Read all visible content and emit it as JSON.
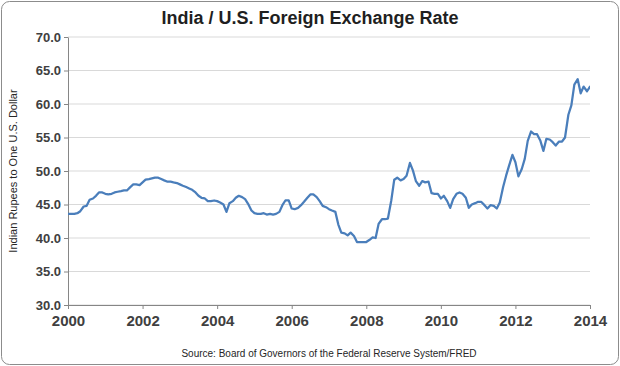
{
  "chart_data": {
    "type": "line",
    "title": "India / U.S. Foreign Exchange Rate",
    "y_label": "Indian Rupees to One U.S. Dollar",
    "annotation": "Source: Board of Governors of the Federal Reserve System/FRED",
    "color": "#4a7ebb",
    "grid": true,
    "xlim": [
      2000,
      2014
    ],
    "xticks": [
      2000,
      2002,
      2004,
      2006,
      2008,
      2010,
      2012,
      2014
    ],
    "ylim": [
      30,
      70
    ],
    "yticks": [
      {
        "value": 30,
        "label": "30.0"
      },
      {
        "value": 35,
        "label": "35.0"
      },
      {
        "value": 40,
        "label": "40.0"
      },
      {
        "value": 45,
        "label": "45.0"
      },
      {
        "value": 50,
        "label": "50.0"
      },
      {
        "value": 55,
        "label": "55.0"
      },
      {
        "value": 60,
        "label": "60.0"
      },
      {
        "value": 65,
        "label": "65.0"
      },
      {
        "value": 70,
        "label": "70.0"
      }
    ],
    "x": [
      2000.0,
      2000.08,
      2000.17,
      2000.25,
      2000.33,
      2000.42,
      2000.5,
      2000.58,
      2000.67,
      2000.75,
      2000.83,
      2000.92,
      2001.0,
      2001.08,
      2001.17,
      2001.25,
      2001.33,
      2001.42,
      2001.5,
      2001.58,
      2001.67,
      2001.75,
      2001.83,
      2001.92,
      2002.0,
      2002.08,
      2002.17,
      2002.25,
      2002.33,
      2002.42,
      2002.5,
      2002.58,
      2002.67,
      2002.75,
      2002.83,
      2002.92,
      2003.0,
      2003.08,
      2003.17,
      2003.25,
      2003.33,
      2003.42,
      2003.5,
      2003.58,
      2003.67,
      2003.75,
      2003.83,
      2003.92,
      2004.0,
      2004.08,
      2004.17,
      2004.25,
      2004.33,
      2004.42,
      2004.5,
      2004.58,
      2004.67,
      2004.75,
      2004.83,
      2004.92,
      2005.0,
      2005.08,
      2005.17,
      2005.25,
      2005.33,
      2005.42,
      2005.5,
      2005.58,
      2005.67,
      2005.75,
      2005.83,
      2005.92,
      2006.0,
      2006.08,
      2006.17,
      2006.25,
      2006.33,
      2006.42,
      2006.5,
      2006.58,
      2006.67,
      2006.75,
      2006.83,
      2006.92,
      2007.0,
      2007.08,
      2007.17,
      2007.25,
      2007.33,
      2007.42,
      2007.5,
      2007.58,
      2007.67,
      2007.75,
      2007.83,
      2007.92,
      2008.0,
      2008.08,
      2008.17,
      2008.25,
      2008.33,
      2008.42,
      2008.5,
      2008.58,
      2008.67,
      2008.75,
      2008.83,
      2008.92,
      2009.0,
      2009.08,
      2009.17,
      2009.25,
      2009.33,
      2009.42,
      2009.5,
      2009.58,
      2009.67,
      2009.75,
      2009.83,
      2009.92,
      2010.0,
      2010.08,
      2010.17,
      2010.25,
      2010.33,
      2010.42,
      2010.5,
      2010.58,
      2010.67,
      2010.75,
      2010.83,
      2010.92,
      2011.0,
      2011.08,
      2011.17,
      2011.25,
      2011.33,
      2011.42,
      2011.5,
      2011.58,
      2011.67,
      2011.75,
      2011.83,
      2011.92,
      2012.0,
      2012.08,
      2012.17,
      2012.25,
      2012.33,
      2012.42,
      2012.5,
      2012.58,
      2012.67,
      2012.75,
      2012.83,
      2012.92,
      2013.0,
      2013.08,
      2013.17,
      2013.25,
      2013.33,
      2013.42,
      2013.5,
      2013.58,
      2013.67,
      2013.75,
      2013.83,
      2013.92,
      2014.0
    ],
    "values": [
      43.6,
      43.6,
      43.6,
      43.7,
      44.0,
      44.7,
      44.8,
      45.7,
      45.9,
      46.3,
      46.8,
      46.8,
      46.6,
      46.5,
      46.6,
      46.8,
      46.9,
      47.0,
      47.1,
      47.1,
      47.6,
      48.0,
      48.0,
      47.9,
      48.3,
      48.7,
      48.8,
      48.9,
      49.0,
      49.0,
      48.8,
      48.6,
      48.4,
      48.4,
      48.3,
      48.2,
      48.0,
      47.8,
      47.6,
      47.4,
      47.2,
      46.8,
      46.3,
      46.0,
      45.9,
      45.5,
      45.5,
      45.6,
      45.5,
      45.3,
      45.0,
      43.9,
      45.2,
      45.5,
      46.0,
      46.3,
      46.1,
      45.8,
      45.1,
      44.1,
      43.7,
      43.6,
      43.6,
      43.7,
      43.5,
      43.6,
      43.5,
      43.6,
      43.9,
      44.9,
      45.6,
      45.6,
      44.4,
      44.3,
      44.5,
      44.9,
      45.4,
      46.0,
      46.5,
      46.5,
      46.1,
      45.5,
      44.8,
      44.6,
      44.3,
      44.1,
      43.9,
      42.0,
      40.8,
      40.7,
      40.4,
      40.8,
      40.3,
      39.4,
      39.4,
      39.4,
      39.4,
      39.7,
      40.1,
      40.0,
      42.1,
      42.8,
      42.8,
      42.9,
      45.6,
      48.7,
      49.0,
      48.6,
      48.8,
      49.3,
      51.2,
      50.1,
      48.5,
      47.8,
      48.5,
      48.3,
      48.4,
      46.7,
      46.6,
      46.6,
      45.9,
      46.3,
      45.5,
      44.5,
      45.8,
      46.6,
      46.8,
      46.6,
      46.0,
      44.5,
      45.0,
      45.2,
      45.4,
      45.4,
      44.9,
      44.4,
      44.9,
      44.8,
      44.4,
      45.3,
      47.6,
      49.3,
      50.8,
      52.4,
      51.3,
      49.2,
      50.3,
      51.8,
      54.5,
      55.9,
      55.5,
      55.5,
      54.5,
      53.0,
      54.8,
      54.7,
      54.3,
      53.8,
      54.4,
      54.4,
      55.0,
      58.4,
      59.8,
      62.9,
      63.7,
      61.6,
      62.6,
      61.9,
      62.6
    ]
  }
}
